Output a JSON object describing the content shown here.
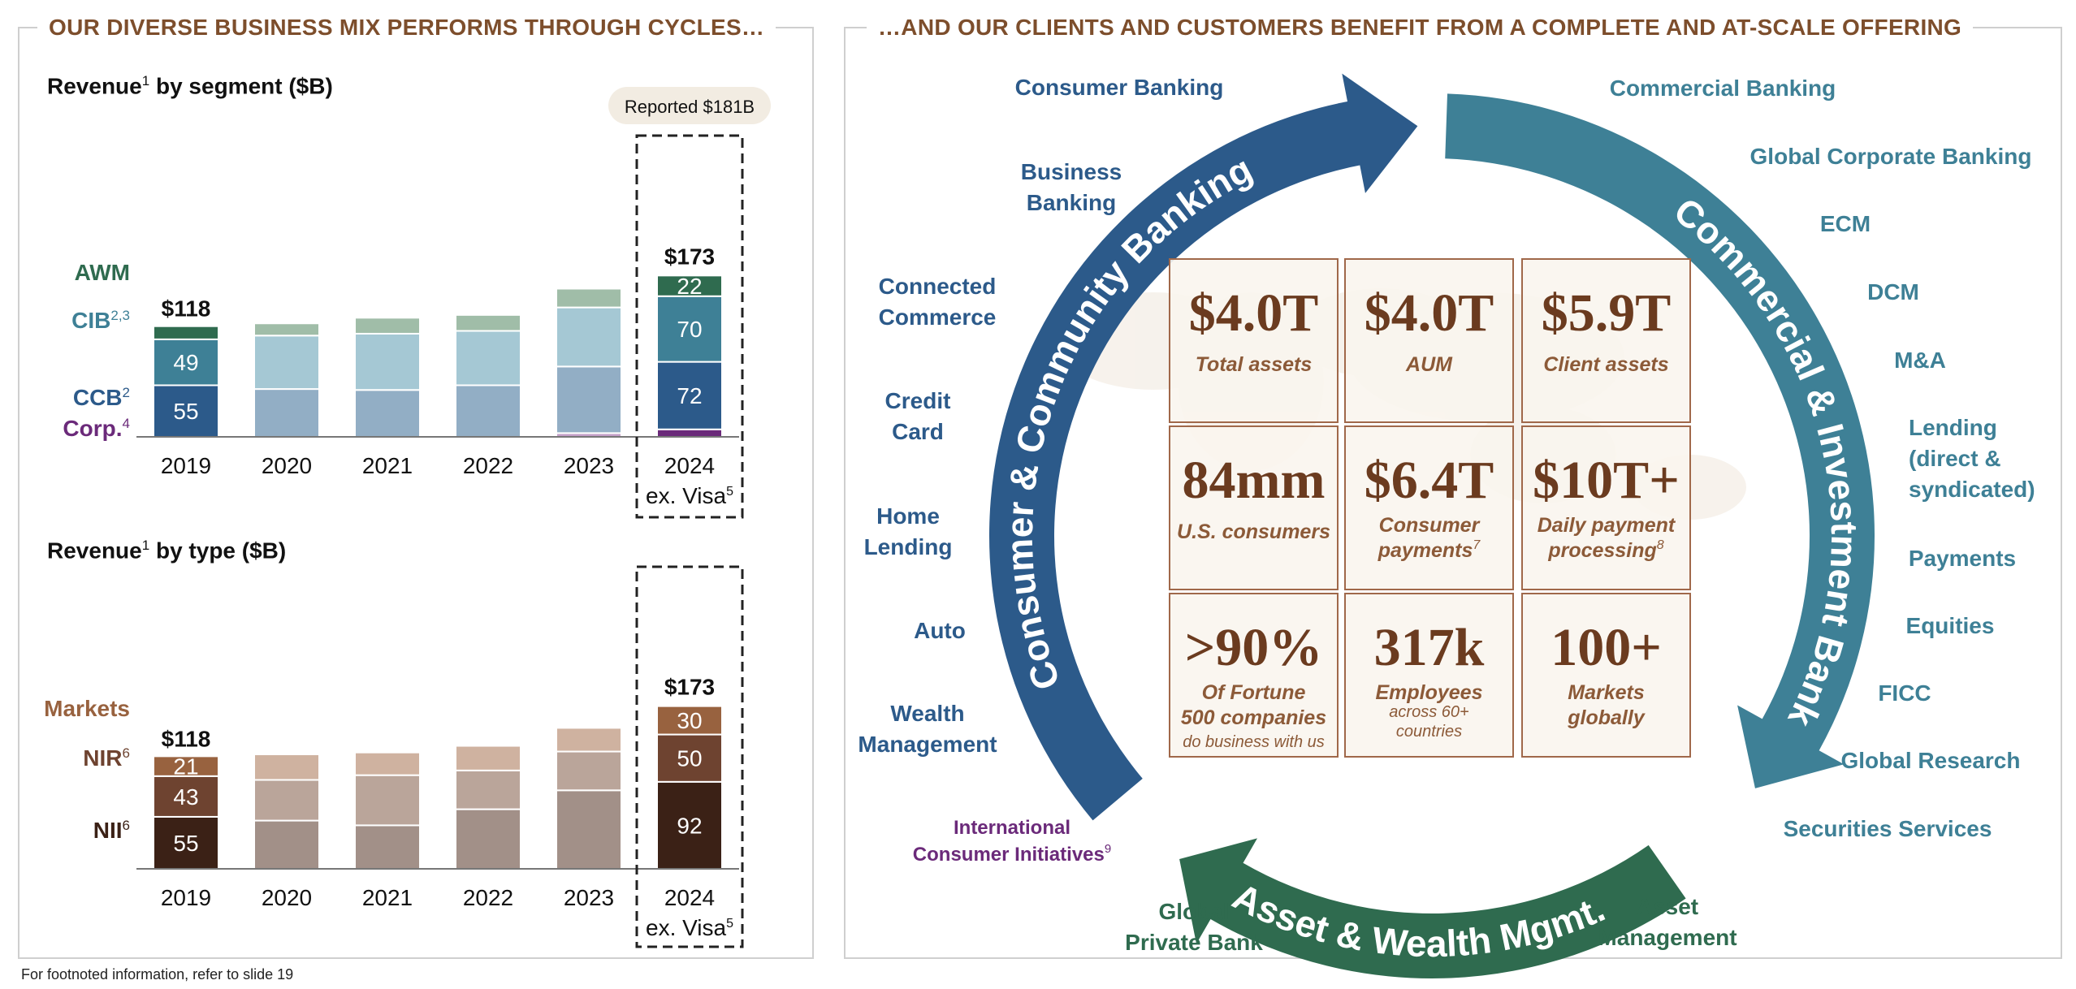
{
  "left_title": "OUR DIVERSE BUSINESS MIX PERFORMS THROUGH CYCLES…",
  "right_title": "…AND OUR CLIENTS AND CUSTOMERS BENEFIT FROM A COMPLETE AND AT-SCALE OFFERING",
  "footnote": "For footnoted information, refer to slide 19",
  "colors": {
    "title_brown": "#7d4e2c",
    "awm": "#2f6b4f",
    "cib": "#3e8096",
    "ccb": "#2c5a8a",
    "corp": "#6b2a7a",
    "markets": "#98623f",
    "nir": "#6e4330",
    "nii": "#3b2116",
    "tile_border": "#a0684a",
    "tile_text": "#6b3b1f",
    "tile_label": "#8c5a38"
  },
  "segment_chart": {
    "title": "Revenue",
    "title_sup": "1",
    "title_suffix": " by segment ($B)",
    "reported_badge": "Reported $181B",
    "row_labels": [
      {
        "text": "AWM",
        "sup": ""
      },
      {
        "text": "CIB",
        "sup": "2,3"
      },
      {
        "text": "CCB",
        "sup": "2"
      },
      {
        "text": "Corp.",
        "sup": "4"
      }
    ],
    "x_labels": [
      "2019",
      "2020",
      "2021",
      "2022",
      "2023",
      "2024"
    ],
    "x_sub_label": "ex. Visa",
    "x_sub_sup": "5",
    "total_2019": "$118",
    "total_2024": "$173"
  },
  "type_chart": {
    "title": "Revenue",
    "title_sup": "1",
    "title_suffix": " by type ($B)",
    "row_labels": [
      {
        "text": "Markets",
        "sup": ""
      },
      {
        "text": "NIR",
        "sup": "6"
      },
      {
        "text": "NII",
        "sup": "6"
      }
    ],
    "x_labels": [
      "2019",
      "2020",
      "2021",
      "2022",
      "2023",
      "2024"
    ],
    "x_sub_label": "ex. Visa",
    "x_sub_sup": "5",
    "total_2019": "$118",
    "total_2024": "$173"
  },
  "chart_data": [
    {
      "type": "bar",
      "stacked": true,
      "title": "Revenue by segment ($B)",
      "categories": [
        "2019",
        "2020",
        "2021",
        "2022",
        "2023",
        "2024 ex. Visa"
      ],
      "series": [
        {
          "name": "Corp.",
          "values": [
            0,
            0,
            -1.5,
            0,
            4,
            8
          ]
        },
        {
          "name": "CCB",
          "values": [
            55,
            51,
            50,
            55,
            71,
            72
          ]
        },
        {
          "name": "CIB",
          "values": [
            49,
            57,
            60,
            58,
            63,
            70
          ]
        },
        {
          "name": "AWM",
          "values": [
            14,
            13,
            17,
            17,
            20,
            22
          ]
        }
      ],
      "labeled_years": [
        "2019",
        "2024 ex. Visa"
      ],
      "totals": {
        "2019": 118,
        "2024 ex. Visa": 173
      },
      "ylim": [
        -3,
        185
      ]
    },
    {
      "type": "bar",
      "stacked": true,
      "title": "Revenue by type ($B)",
      "categories": [
        "2019",
        "2020",
        "2021",
        "2022",
        "2023",
        "2024 ex. Visa"
      ],
      "series": [
        {
          "name": "NII",
          "values": [
            55,
            51,
            46,
            63,
            83,
            92
          ]
        },
        {
          "name": "NIR",
          "values": [
            43,
            43,
            53,
            41,
            41,
            50
          ]
        },
        {
          "name": "Markets",
          "values": [
            21,
            27,
            24,
            26,
            25,
            30
          ]
        }
      ],
      "labeled_years": [
        "2019",
        "2024 ex. Visa"
      ],
      "totals": {
        "2019": 118,
        "2024 ex. Visa": 173
      },
      "ylim": [
        0,
        185
      ]
    }
  ],
  "circle": {
    "arc_ccb": "Consumer & Community Banking",
    "arc_cib": "Commercial & Investment Bank",
    "arc_awm": "Asset & Wealth Mgmt.",
    "left_labels": [
      [
        "Consumer Banking"
      ],
      [
        "Business",
        "Banking"
      ],
      [
        "Connected",
        "Commerce"
      ],
      [
        "Credit",
        "Card"
      ],
      [
        "Home",
        "Lending"
      ],
      [
        "Auto"
      ],
      [
        "Wealth",
        "Management"
      ]
    ],
    "right_labels": [
      [
        "Commercial Banking"
      ],
      [
        "Global Corporate Banking"
      ],
      [
        "ECM"
      ],
      [
        "DCM"
      ],
      [
        "M&A"
      ],
      [
        "Lending",
        "(direct &",
        "syndicated)"
      ],
      [
        "Payments"
      ],
      [
        "Equities"
      ],
      [
        "FICC"
      ],
      [
        "Global Research"
      ],
      [
        "Securities Services"
      ]
    ],
    "intl_label": [
      "International",
      "Consumer Initiatives"
    ],
    "intl_sup": "9",
    "bottom_left_label": [
      "Global",
      "Private Bank"
    ],
    "bottom_right_label": [
      "Asset",
      "Management"
    ]
  },
  "tiles": [
    {
      "value": "$4.0T",
      "label": "Total assets",
      "sub": "",
      "sup": ""
    },
    {
      "value": "$4.0T",
      "label": "AUM",
      "sub": "",
      "sup": ""
    },
    {
      "value": "$5.9T",
      "label": "Client assets",
      "sub": "",
      "sup": ""
    },
    {
      "value": "84mm",
      "label": "U.S. consumers",
      "sub": "",
      "sup": ""
    },
    {
      "value": "$6.4T",
      "label": "Consumer payments",
      "sub": "",
      "sup": "7"
    },
    {
      "value": "$10T+",
      "label": "Daily payment processing",
      "sub": "",
      "sup": "8"
    },
    {
      "value": ">90%",
      "label": "Of Fortune 500 companies",
      "sub": "do business with us",
      "sup": ""
    },
    {
      "value": "317k",
      "label": "Employees",
      "sub": "across 60+ countries",
      "sup": ""
    },
    {
      "value": "100+",
      "label": "Markets globally",
      "sub": "",
      "sup": ""
    }
  ]
}
